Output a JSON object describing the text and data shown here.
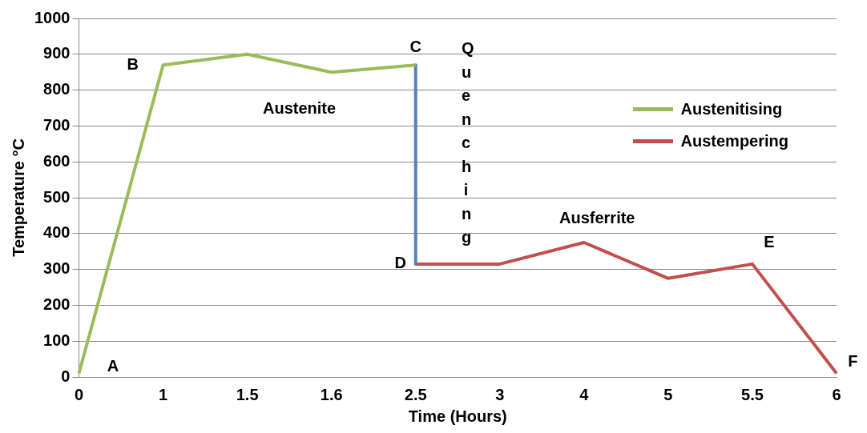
{
  "chart_data": {
    "type": "line",
    "xlabel": "Time (Hours)",
    "ylabel": "Temperature °C",
    "categories": [
      "0",
      "1",
      "1.5",
      "1.6",
      "2.5",
      "3",
      "4",
      "5",
      "5.5",
      "6"
    ],
    "series": [
      {
        "name": "Austenitising",
        "color": "#9bbb59",
        "values": [
          10,
          870,
          900,
          850,
          870,
          null,
          null,
          null,
          null,
          null
        ]
      },
      {
        "color": "#4f81bd",
        "x": [
          "2.5",
          "2.5"
        ],
        "values": [
          870,
          315
        ]
      },
      {
        "name": "Austempering",
        "color": "#c0504d",
        "values": [
          null,
          null,
          null,
          null,
          315,
          315,
          375,
          275,
          315,
          10
        ]
      }
    ],
    "ylim": [
      0,
      1000
    ],
    "yticks": [
      0,
      100,
      200,
      300,
      400,
      500,
      600,
      700,
      800,
      900,
      1000
    ],
    "grid": "y",
    "legend": "top right",
    "marker": "none",
    "line_style": "solid",
    "annotations": [
      {
        "text": "A",
        "x": "0",
        "y": 10
      },
      {
        "text": "B",
        "x": "1",
        "y": 870
      },
      {
        "text": "C",
        "x": "2.5",
        "y": 870
      },
      {
        "text": "D",
        "x": "2.5",
        "y": 315
      },
      {
        "text": "E",
        "x": "5.5",
        "y": 315
      },
      {
        "text": "F",
        "x": "6",
        "y": 10
      },
      "Austenite",
      "Ausferrite",
      "Quenching"
    ]
  }
}
